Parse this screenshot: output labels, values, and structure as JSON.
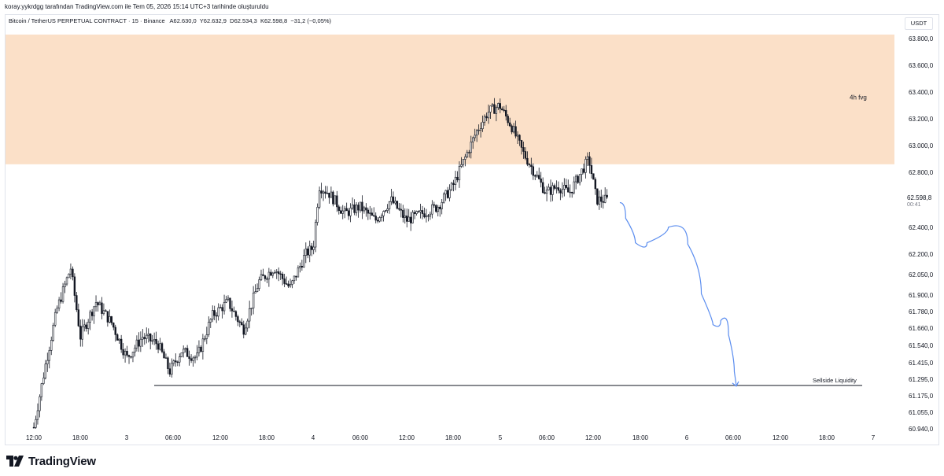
{
  "header": {
    "credit": "koray.yykrdgg tarafından TradingView.com ile Tem 05, 2026 15:14 UTC+3 tarihinde oluşturuldu"
  },
  "legend": {
    "symbol": "Bitcoin / TetherUS PERPETUAL CONTRACT · 15 · Binance",
    "open": "A62.630,0",
    "high": "Y62.632,9",
    "low": "D62.534,3",
    "close": "K62.598,8",
    "change": "−31,2 (−0,05%)"
  },
  "currency_button": "USDT",
  "price_badge": {
    "price": "62.598,8",
    "countdown": "00:41"
  },
  "annotations": {
    "zone_label": "4h fvg",
    "liquidity_label": "Sellside Liquidity"
  },
  "branding": {
    "logo_text": "TradingView"
  },
  "colors": {
    "zone": "#fbe0c8",
    "candle_body": "#131722",
    "projection": "#5b8def",
    "liquidity_line": "#131722",
    "axis_text": "#131722"
  },
  "chart_data": {
    "type": "candlestick",
    "interval": "15",
    "y_axis_ticks": [
      "63.800,0",
      "63.600,0",
      "63.400,0",
      "63.200,0",
      "63.000,0",
      "62.800,0",
      "62.598,8",
      "62.400,0",
      "62.200,0",
      "62.050,0",
      "61.900,0",
      "61.780,0",
      "61.660,0",
      "61.540,0",
      "61.415,0",
      "61.295,0",
      "61.175,0",
      "61.055,0",
      "60.940,0"
    ],
    "x_axis_ticks": [
      "12:00",
      "18:00",
      "3",
      "06:00",
      "12:00",
      "18:00",
      "4",
      "06:00",
      "12:00",
      "18:00",
      "5",
      "06:00",
      "12:00",
      "18:00",
      "6",
      "06:00",
      "12:00",
      "18:00",
      "7"
    ],
    "fvg_zone": {
      "top": 63.83,
      "bottom": 62.86,
      "label": "4h fvg"
    },
    "sellside_liquidity": 61.25,
    "price_path_approx": [
      {
        "t": "2-12:00",
        "price": 60.95
      },
      {
        "t": "2-13:30",
        "price": 61.4
      },
      {
        "t": "2-15:00",
        "price": 61.8
      },
      {
        "t": "2-16:45",
        "price": 62.1
      },
      {
        "t": "2-18:00",
        "price": 61.6
      },
      {
        "t": "2-20:00",
        "price": 61.85
      },
      {
        "t": "2-22:00",
        "price": 61.7
      },
      {
        "t": "3-00:00",
        "price": 61.45
      },
      {
        "t": "3-02:00",
        "price": 61.6
      },
      {
        "t": "3-04:00",
        "price": 61.55
      },
      {
        "t": "3-05:30",
        "price": 61.35
      },
      {
        "t": "3-07:00",
        "price": 61.5
      },
      {
        "t": "3-09:00",
        "price": 61.45
      },
      {
        "t": "3-11:00",
        "price": 61.75
      },
      {
        "t": "3-13:00",
        "price": 61.85
      },
      {
        "t": "3-15:00",
        "price": 61.65
      },
      {
        "t": "3-17:00",
        "price": 62.0
      },
      {
        "t": "3-19:00",
        "price": 62.1
      },
      {
        "t": "3-21:00",
        "price": 61.95
      },
      {
        "t": "3-23:00",
        "price": 62.2
      },
      {
        "t": "4-00:00",
        "price": 62.25
      },
      {
        "t": "4-00:45",
        "price": 62.7
      },
      {
        "t": "4-02:00",
        "price": 62.65
      },
      {
        "t": "4-04:00",
        "price": 62.5
      },
      {
        "t": "4-06:00",
        "price": 62.55
      },
      {
        "t": "4-08:00",
        "price": 62.45
      },
      {
        "t": "4-10:00",
        "price": 62.6
      },
      {
        "t": "4-12:00",
        "price": 62.45
      },
      {
        "t": "4-14:00",
        "price": 62.5
      },
      {
        "t": "4-16:00",
        "price": 62.55
      },
      {
        "t": "4-18:00",
        "price": 62.7
      },
      {
        "t": "4-19:30",
        "price": 62.9
      },
      {
        "t": "4-21:00",
        "price": 63.1
      },
      {
        "t": "4-22:30",
        "price": 63.25
      },
      {
        "t": "5-00:00",
        "price": 63.3
      },
      {
        "t": "5-01:30",
        "price": 63.15
      },
      {
        "t": "5-03:00",
        "price": 62.95
      },
      {
        "t": "5-04:30",
        "price": 62.8
      },
      {
        "t": "5-06:00",
        "price": 62.65
      },
      {
        "t": "5-07:30",
        "price": 62.7
      },
      {
        "t": "5-09:00",
        "price": 62.65
      },
      {
        "t": "5-10:30",
        "price": 62.8
      },
      {
        "t": "5-11:30",
        "price": 62.9
      },
      {
        "t": "5-12:30",
        "price": 62.6
      },
      {
        "t": "5-14:00",
        "price": 62.6
      }
    ],
    "projection_path_approx": [
      {
        "t": "5-15:30",
        "price": 62.58
      },
      {
        "t": "5-17:00",
        "price": 62.35
      },
      {
        "t": "5-18:00",
        "price": 62.22
      },
      {
        "t": "5-20:00",
        "price": 62.35
      },
      {
        "t": "5-23:30",
        "price": 62.45
      },
      {
        "t": "6-01:00",
        "price": 62.1
      },
      {
        "t": "6-03:00",
        "price": 61.72
      },
      {
        "t": "6-04:00",
        "price": 61.65
      },
      {
        "t": "6-05:00",
        "price": 61.78
      },
      {
        "t": "6-06:00",
        "price": 61.45
      },
      {
        "t": "6-06:30",
        "price": 61.25
      }
    ]
  }
}
